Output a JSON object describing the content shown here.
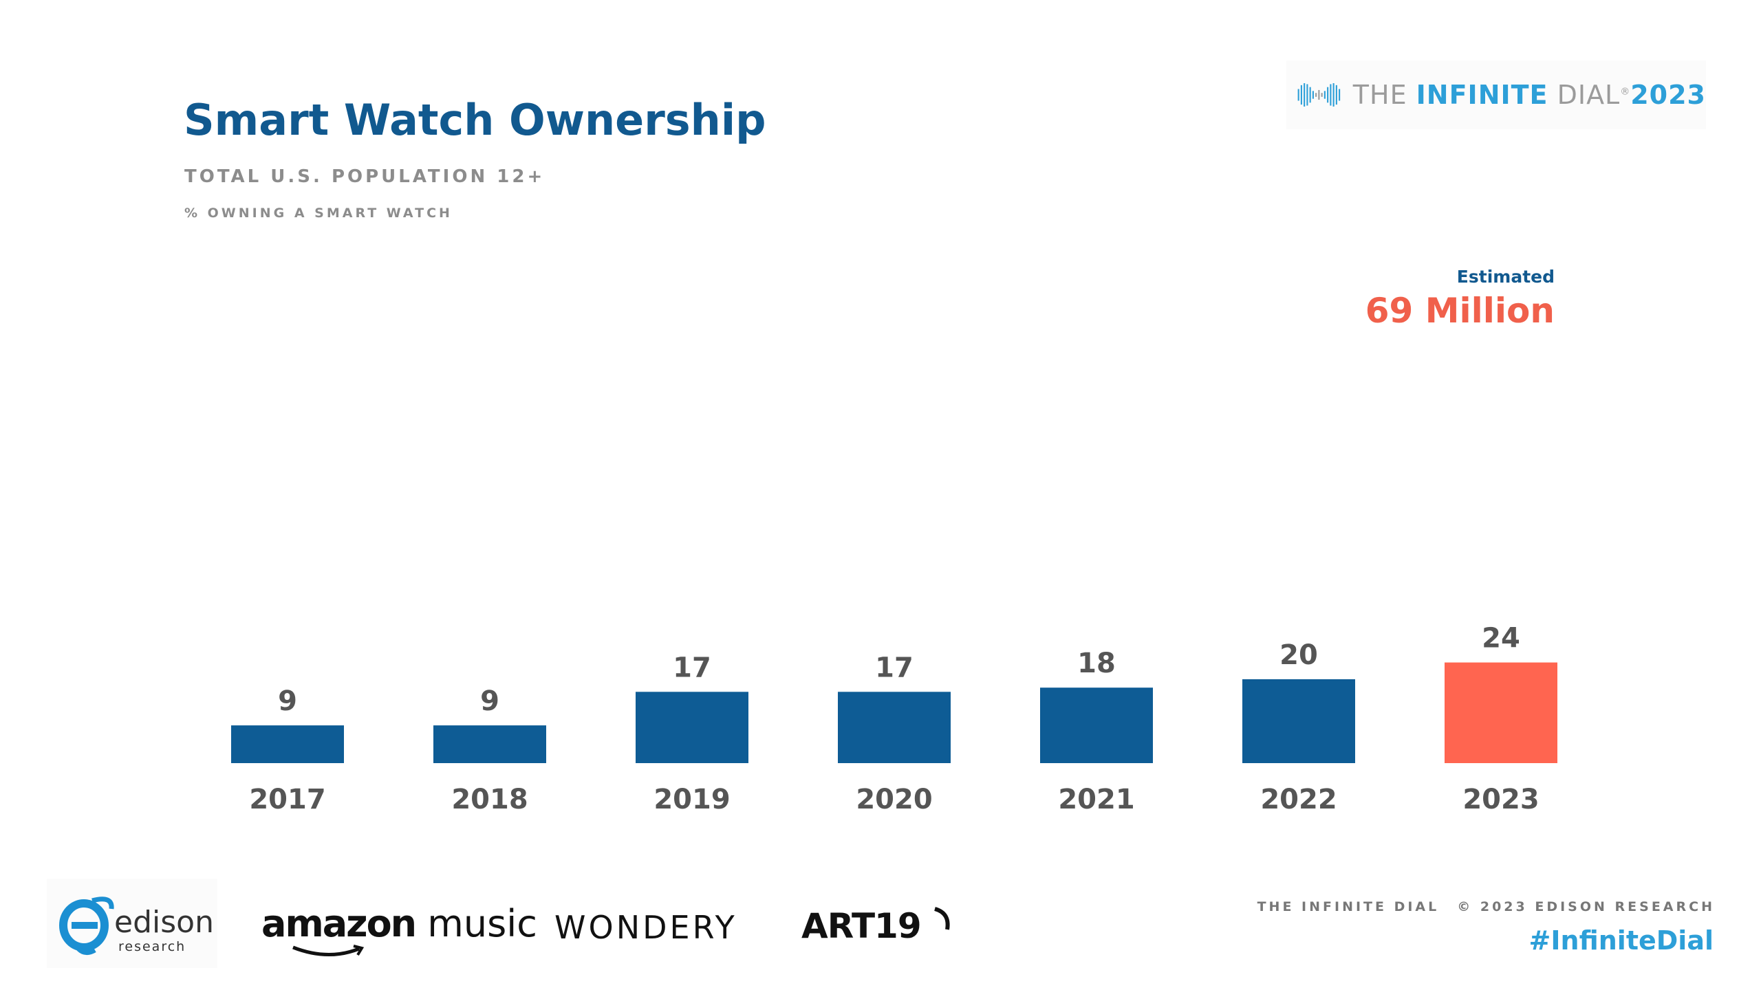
{
  "header": {
    "title": "Smart Watch Ownership",
    "subtitle": "TOTAL U.S. POPULATION 12+",
    "measure": "% OWNING A SMART WATCH"
  },
  "brand": {
    "the": "THE ",
    "infinite": "INFINITE",
    "dial": " DIAL",
    "registered": "®",
    "year": "2023",
    "icon": "infinity-waveform-icon"
  },
  "callout": {
    "label": "Estimated",
    "value": "69 Million"
  },
  "chart_data": {
    "type": "bar",
    "categories": [
      "2017",
      "2018",
      "2019",
      "2020",
      "2021",
      "2022",
      "2023"
    ],
    "values": [
      9,
      9,
      17,
      17,
      18,
      20,
      24
    ],
    "title": "Smart Watch Ownership",
    "xlabel": "",
    "ylabel": "",
    "ylim": [
      0,
      24
    ],
    "grid": false,
    "colors": {
      "default": "#0e5c95",
      "highlight": "#ff6550"
    },
    "highlight_index": 6
  },
  "footer": {
    "sponsors": {
      "edison_word": "edison",
      "edison_sub": "research",
      "amazon_a": "amazon",
      "amazon_b": "music",
      "wondery": "WONDERY",
      "art19": "ART19"
    },
    "credit_left": "THE INFINITE DIAL",
    "credit_right": "© 2023 EDISON RESEARCH",
    "hashtag": "#InfiniteDial"
  }
}
